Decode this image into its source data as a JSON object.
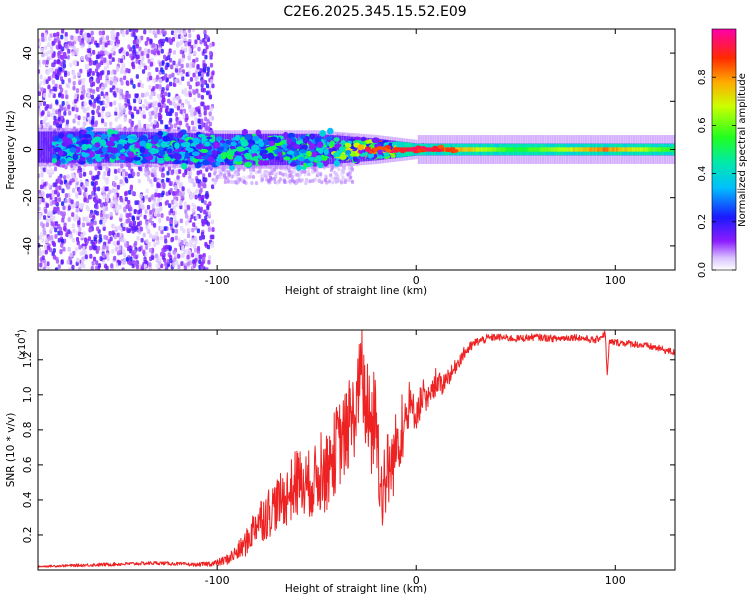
{
  "figure_title": "C2E6.2025.345.15.52.E09",
  "chart_data": [
    {
      "type": "heatmap",
      "title": "C2E6.2025.345.15.52.E09",
      "xlabel": "Height of straight line (km)",
      "ylabel": "Frequency (Hz)",
      "xlim": [
        -190,
        130
      ],
      "ylim": [
        -50,
        50
      ],
      "xticks": [
        -100,
        0,
        100
      ],
      "yticks": [
        -40,
        -20,
        0,
        20,
        40
      ],
      "colorbar": {
        "label": "Normalized spectral amplitude",
        "range": [
          0,
          1
        ],
        "ticks": [
          0.0,
          0.2,
          0.4,
          0.6,
          0.8
        ],
        "tick_labels": [
          "0.0",
          "0.2",
          "0.4",
          "0.6",
          "0.8"
        ]
      },
      "description_points": [
        {
          "x": -150,
          "band_center_hz": 1,
          "band_halfwidth_hz": 5,
          "peak_amplitude": 0.45
        },
        {
          "x": -100,
          "band_center_hz": 0,
          "band_halfwidth_hz": 5,
          "peak_amplitude": 0.5
        },
        {
          "x": -50,
          "band_center_hz": 0,
          "band_halfwidth_hz": 5,
          "peak_amplitude": 0.6
        },
        {
          "x": -20,
          "band_center_hz": 0,
          "band_halfwidth_hz": 3,
          "peak_amplitude": 0.9
        },
        {
          "x": 0,
          "band_center_hz": 0,
          "band_halfwidth_hz": 1,
          "peak_amplitude": 1.0
        },
        {
          "x": 50,
          "band_center_hz": 0,
          "band_halfwidth_hz": 1,
          "peak_amplitude": 0.55
        },
        {
          "x": 95,
          "band_center_hz": 0,
          "band_halfwidth_hz": 1,
          "peak_amplitude": 0.85
        },
        {
          "x": 130,
          "band_center_hz": 0,
          "band_halfwidth_hz": 1,
          "peak_amplitude": 0.55
        }
      ]
    },
    {
      "type": "line",
      "xlabel": "Height of straight line (km)",
      "ylabel": "SNR (10 * v/v)",
      "y_multiplier": "(x10",
      "y_multiplier_exp": "4",
      "xlim": [
        -190,
        130
      ],
      "ylim": [
        0,
        1.37
      ],
      "xticks": [
        -100,
        0,
        100
      ],
      "yticks": [
        0.2,
        0.4,
        0.6,
        0.8,
        1.0,
        1.2
      ],
      "ytick_labels": [
        "0.2",
        "0.4",
        "0.6",
        "0.8",
        "1.0",
        "1.2"
      ],
      "series": [
        {
          "name": "SNR",
          "color": "#ee2222",
          "x": [
            -190,
            -160,
            -130,
            -110,
            -100,
            -95,
            -90,
            -85,
            -80,
            -75,
            -70,
            -65,
            -60,
            -55,
            -50,
            -45,
            -40,
            -35,
            -30,
            -28,
            -25,
            -22,
            -20,
            -18,
            -15,
            -12,
            -10,
            -7,
            -5,
            -3,
            0,
            3,
            5,
            8,
            10,
            13,
            15,
            18,
            20,
            23,
            25,
            28,
            30,
            35,
            40,
            50,
            60,
            70,
            80,
            90,
            95,
            96,
            97,
            100,
            110,
            120,
            130
          ],
          "y": [
            0.02,
            0.03,
            0.04,
            0.03,
            0.04,
            0.06,
            0.1,
            0.16,
            0.28,
            0.32,
            0.38,
            0.42,
            0.5,
            0.48,
            0.52,
            0.55,
            0.7,
            0.78,
            0.92,
            1.16,
            0.9,
            0.8,
            0.85,
            0.45,
            0.55,
            0.6,
            0.72,
            0.8,
            0.85,
            0.92,
            0.9,
            0.98,
            0.95,
            1.0,
            1.08,
            1.05,
            1.1,
            1.12,
            1.17,
            1.22,
            1.25,
            1.28,
            1.3,
            1.32,
            1.33,
            1.32,
            1.33,
            1.32,
            1.33,
            1.31,
            1.35,
            1.1,
            1.3,
            1.3,
            1.29,
            1.27,
            1.24
          ],
          "noise": [
            0.005,
            0.01,
            0.01,
            0.01,
            0.02,
            0.03,
            0.05,
            0.08,
            0.12,
            0.15,
            0.15,
            0.17,
            0.2,
            0.2,
            0.2,
            0.22,
            0.25,
            0.25,
            0.25,
            0.2,
            0.3,
            0.32,
            0.3,
            0.25,
            0.25,
            0.22,
            0.2,
            0.18,
            0.15,
            0.12,
            0.1,
            0.1,
            0.08,
            0.08,
            0.07,
            0.06,
            0.05,
            0.05,
            0.04,
            0.04,
            0.035,
            0.03,
            0.025,
            0.025,
            0.02,
            0.02,
            0.02,
            0.02,
            0.02,
            0.02,
            0.02,
            0.02,
            0.02,
            0.02,
            0.02,
            0.02,
            0.02
          ]
        }
      ]
    }
  ]
}
